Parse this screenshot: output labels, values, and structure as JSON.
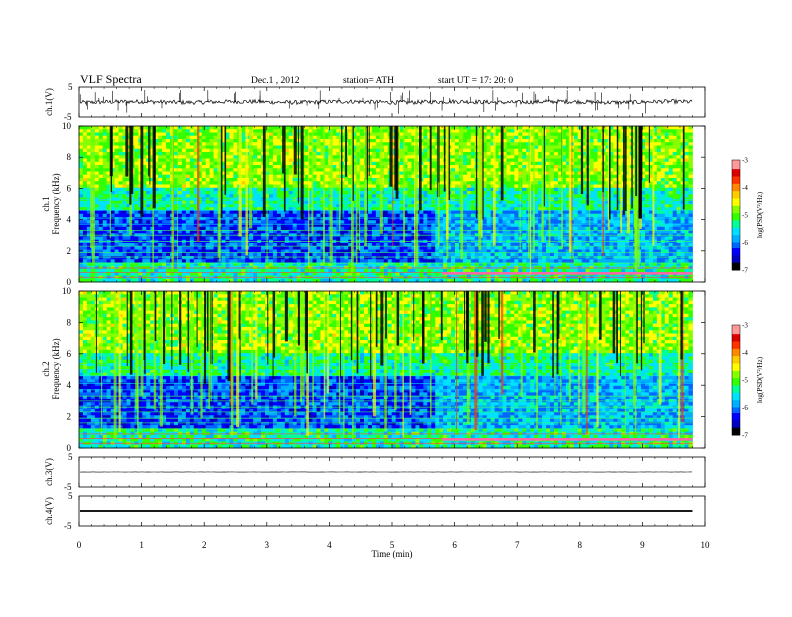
{
  "header": {
    "title": "VLF  Spectra",
    "date": "Dec.1  , 2012",
    "station": "station= ATH",
    "start": "start  UT  =    17: 20: 0"
  },
  "chart_data": [
    {
      "type": "line",
      "name": "ch1-waveform",
      "ylabel": "ch.1(V)",
      "ylim": [
        -5,
        5
      ],
      "yticks": [
        "5",
        "-5"
      ],
      "xlim": [
        0,
        10
      ],
      "trace_level": 0,
      "trace_amplitude": 1.4,
      "spikes": true
    },
    {
      "type": "heatmap",
      "name": "ch1-spectrogram",
      "ylabel": "ch.1\nFrequency  (kHz)",
      "ylabel_line1": "ch.1",
      "ylabel_line2": "Frequency  (kHz)",
      "ylim": [
        0,
        10
      ],
      "yticks": [
        "0",
        "2",
        "4",
        "6",
        "8",
        "10"
      ],
      "xlim": [
        0,
        10
      ],
      "data_end_min": 9.8,
      "colorbar": {
        "label": "log(PSD(V²/Hz)",
        "ticks": [
          "-3",
          "-4",
          "-5",
          "-6",
          "-7"
        ],
        "range": [
          -7,
          -3
        ]
      }
    },
    {
      "type": "heatmap",
      "name": "ch2-spectrogram",
      "ylabel": "ch.2\nFrequency  (kHz)",
      "ylabel_line1": "ch.2",
      "ylabel_line2": "Frequency  (kHz)",
      "ylim": [
        0,
        10
      ],
      "yticks": [
        "0",
        "2",
        "4",
        "6",
        "8",
        "10"
      ],
      "xlim": [
        0,
        10
      ],
      "data_end_min": 9.8,
      "colorbar": {
        "label": "log(PSD(V²/Hz)",
        "ticks": [
          "-3",
          "-4",
          "-5",
          "-6",
          "-7"
        ],
        "range": [
          -7,
          -3
        ]
      }
    },
    {
      "type": "line",
      "name": "ch3-waveform",
      "ylabel": "ch.3(V)",
      "ylim": [
        -5,
        5
      ],
      "yticks": [
        "5",
        "-5"
      ],
      "xlim": [
        0,
        10
      ],
      "trace_level": 0,
      "trace_amplitude": 0.1
    },
    {
      "type": "line",
      "name": "ch4-waveform",
      "ylabel": "ch.4(V)",
      "ylim": [
        -5,
        5
      ],
      "yticks": [
        "5",
        "-5"
      ],
      "xlim": [
        0,
        10
      ],
      "trace_level": 0,
      "trace_amplitude": 0.3
    }
  ],
  "x_axis": {
    "label": "Time  (min)",
    "ticks": [
      "0",
      "1",
      "2",
      "3",
      "4",
      "5",
      "6",
      "7",
      "8",
      "9",
      "10"
    ],
    "range": [
      0,
      10
    ]
  },
  "colors": {
    "colormap": [
      "#000000",
      "#0000c0",
      "#0000ff",
      "#0066ff",
      "#00b0ff",
      "#00e0ff",
      "#00ff99",
      "#33ff00",
      "#88ff00",
      "#ffff00",
      "#ffcc00",
      "#ff8800",
      "#ff3300",
      "#dd0000",
      "#ff9999",
      "#ffffff"
    ]
  }
}
